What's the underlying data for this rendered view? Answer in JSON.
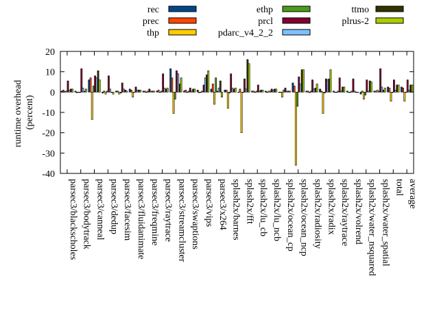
{
  "chart_data": {
    "type": "bar",
    "ylabel": "runtime overhead (percent)",
    "ylabel_lines": [
      "runtime overhead",
      "(percent)"
    ],
    "ylim": [
      -40,
      20
    ],
    "yticks": [
      -40,
      -30,
      -20,
      -10,
      0,
      10,
      20
    ],
    "grid": false,
    "legend_placement": "top",
    "categories": [
      "parsec3/blackscholes",
      "parsec3/bodytrack",
      "parsec3/canneal",
      "parsec3/dedup",
      "parsec3/facesim",
      "parsec3/fluidanimate",
      "parsec3/freqmine",
      "parsec3/raytrace",
      "parsec3/streamcluster",
      "parsec3/swaptions",
      "parsec3/vips",
      "parsec3/x264",
      "splash2x/barnes",
      "splash2x/fft",
      "splash2x/lu_cb",
      "splash2x/lu_ncb",
      "splash2x/ocean_cp",
      "splash2x/ocean_ncp",
      "splash2x/radiosity",
      "splash2x/radix",
      "splash2x/raytrace",
      "splash2x/volrend",
      "splash2x/water_nsquared",
      "splash2x/water_spatial",
      "total",
      "average"
    ],
    "series": [
      {
        "name": "rec",
        "color": "#00468b",
        "values": [
          0.5,
          0.5,
          6,
          -0.5,
          0.5,
          1.5,
          0.5,
          0.5,
          11.5,
          0.5,
          1,
          1.5,
          1,
          0,
          0.5,
          0.5,
          0,
          4.5,
          0.5,
          1.5,
          0.5,
          0.5,
          -1,
          0.5,
          2.5,
          2.5
        ]
      },
      {
        "name": "prec",
        "color": "#ff4500",
        "values": [
          1,
          -0.3,
          7,
          0.5,
          0.5,
          1,
          0.5,
          1,
          7,
          1,
          -0.3,
          4,
          1,
          1.5,
          0.5,
          0,
          0,
          3,
          0.5,
          0.5,
          0,
          0,
          0.5,
          0.5,
          2,
          2
        ]
      },
      {
        "name": "thp",
        "color": "#ffcc00",
        "values": [
          0.3,
          0,
          -13.5,
          -1,
          -1,
          -2.5,
          0,
          0,
          -10.5,
          0,
          0,
          -6,
          -8,
          -20,
          0,
          0.5,
          -2.5,
          -36,
          -0.3,
          -10.5,
          0,
          0,
          -3.5,
          1,
          -4.5,
          -4.5
        ]
      },
      {
        "name": "ethp",
        "color": "#4a9c1a",
        "values": [
          0.5,
          0,
          3,
          0.5,
          -0.5,
          0,
          0.5,
          0.5,
          -3.5,
          0.5,
          0.5,
          7,
          -0.5,
          0,
          0.5,
          0.5,
          1,
          -7,
          0.5,
          -0.5,
          0.5,
          0.5,
          -1.5,
          0.5,
          0,
          0
        ]
      },
      {
        "name": "prcl",
        "color": "#800030",
        "values": [
          5.5,
          11.5,
          8,
          8,
          4.5,
          2.5,
          1.5,
          9,
          10.5,
          2,
          3.5,
          0.5,
          9,
          6.5,
          3.5,
          1.5,
          2,
          7.5,
          6,
          6.5,
          7,
          6.5,
          6,
          11.5,
          6,
          6
        ]
      },
      {
        "name": "pdarc_v4_2_2",
        "color": "#80c0ff",
        "values": [
          1,
          2,
          7,
          1.5,
          1.5,
          1,
          0.5,
          2,
          9,
          0.5,
          7,
          2,
          2,
          1.5,
          0.5,
          1,
          0.5,
          4,
          1.5,
          6,
          0.5,
          0.5,
          0.5,
          2.5,
          1,
          1
        ]
      },
      {
        "name": "ttmo",
        "color": "#333300",
        "values": [
          1.5,
          0.5,
          10.5,
          0,
          1,
          1,
          0.5,
          1.5,
          4,
          1.5,
          8.5,
          5.5,
          1.5,
          16,
          1,
          1.5,
          0.5,
          11,
          2,
          6.5,
          2.5,
          0,
          5.5,
          1,
          3.5,
          3.5
        ]
      },
      {
        "name": "plrus-2",
        "color": "#aacc00",
        "values": [
          1.5,
          1.5,
          6,
          -1,
          0.5,
          1,
          0.5,
          2,
          7,
          1.5,
          10.5,
          -2.5,
          2,
          14,
          1,
          1.5,
          0.5,
          11,
          4,
          11,
          2.5,
          0,
          5,
          2,
          3.5,
          3.5
        ]
      }
    ]
  }
}
